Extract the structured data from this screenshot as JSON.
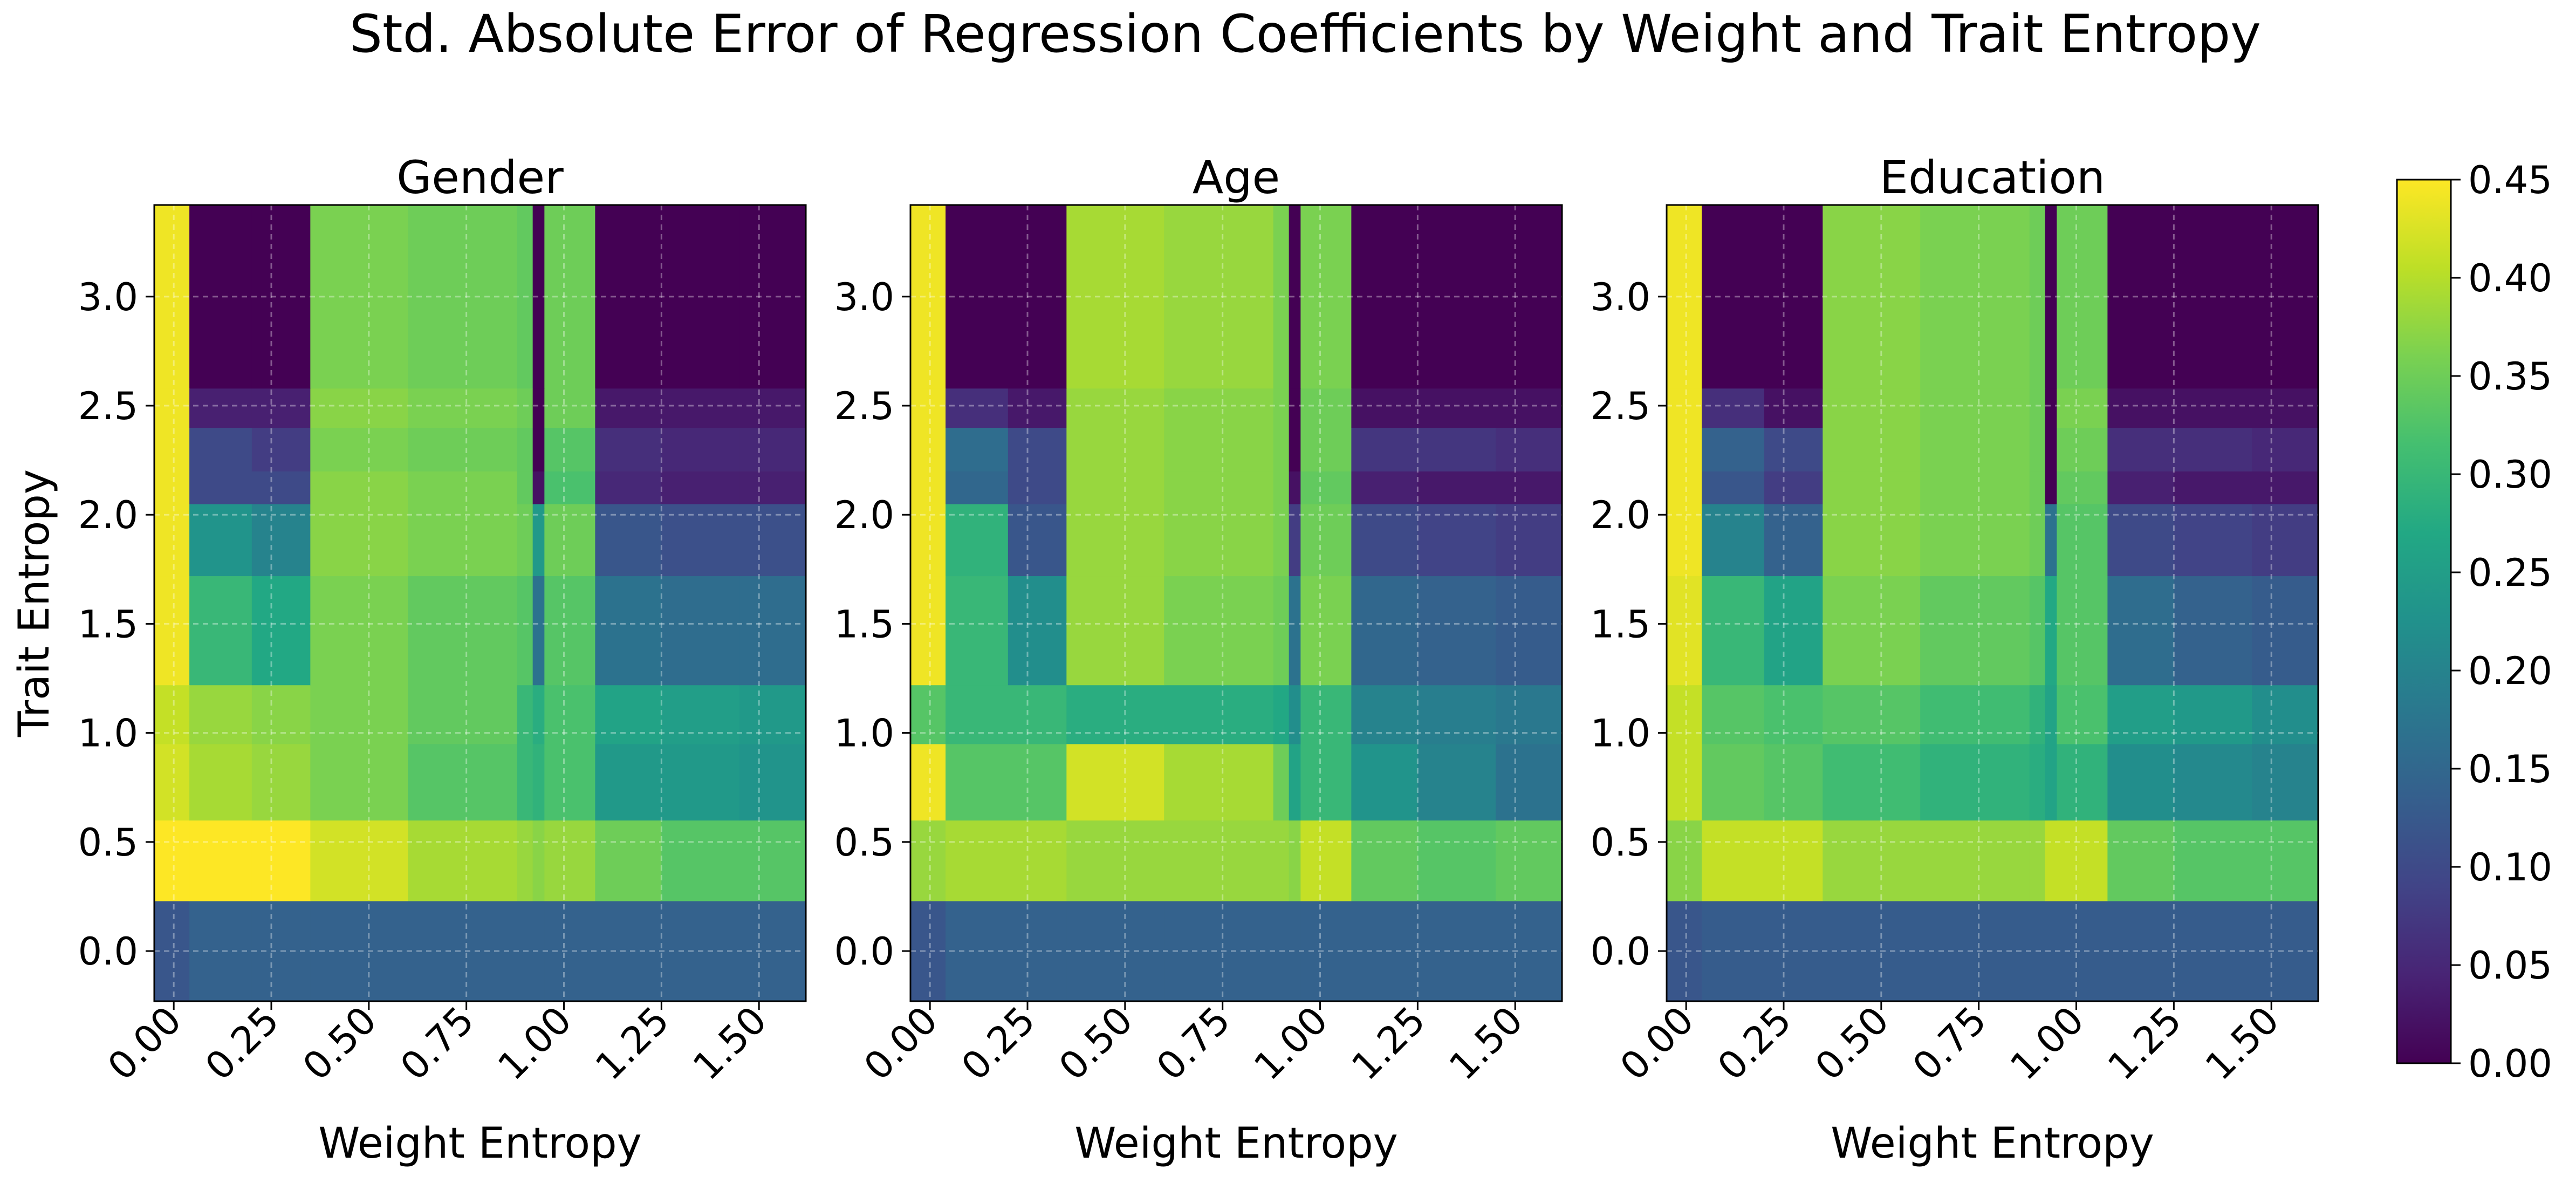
{
  "chart_data": {
    "type": "heatmap",
    "title": "Std. Absolute Error of Regression Coefficients by Weight and Trait Entropy",
    "colormap": "viridis",
    "colorbar": {
      "range": [
        0,
        0.45
      ],
      "ticks": [
        "0.00",
        "0.05",
        "0.10",
        "0.15",
        "0.20",
        "0.25",
        "0.30",
        "0.35",
        "0.40",
        "0.45"
      ]
    },
    "grid": true,
    "x_range": [
      -0.05,
      1.62
    ],
    "y_range": [
      -0.23,
      3.42
    ],
    "x_ticks": [
      "0.00",
      "0.25",
      "0.50",
      "0.75",
      "1.00",
      "1.25",
      "1.50"
    ],
    "y_ticks": [
      "0.0",
      "0.5",
      "1.0",
      "1.5",
      "2.0",
      "2.5",
      "3.0"
    ],
    "x_edges": [
      -0.05,
      0.04,
      0.2,
      0.35,
      0.6,
      0.88,
      0.92,
      0.95,
      1.08,
      1.25,
      1.45,
      1.62
    ],
    "y_edges": [
      -0.23,
      0.23,
      0.6,
      0.95,
      1.22,
      1.72,
      2.05,
      2.2,
      2.4,
      2.58,
      3.42
    ],
    "subplots": [
      {
        "title": "Gender",
        "xlabel": "Weight Entropy",
        "ylabel": "Trait Entropy",
        "z": [
          [
            0.12,
            0.14,
            0.14,
            0.14,
            0.14,
            0.14,
            0.14,
            0.14,
            0.14,
            0.14,
            0.14
          ],
          [
            0.45,
            0.45,
            0.45,
            0.42,
            0.39,
            0.38,
            0.37,
            0.38,
            0.35,
            0.33,
            0.33
          ],
          [
            0.42,
            0.39,
            0.38,
            0.36,
            0.33,
            0.3,
            0.29,
            0.32,
            0.24,
            0.24,
            0.23
          ],
          [
            0.41,
            0.38,
            0.37,
            0.36,
            0.34,
            0.3,
            0.28,
            0.32,
            0.26,
            0.25,
            0.24
          ],
          [
            0.44,
            0.3,
            0.27,
            0.36,
            0.34,
            0.33,
            0.17,
            0.33,
            0.17,
            0.16,
            0.16
          ],
          [
            0.44,
            0.23,
            0.2,
            0.37,
            0.36,
            0.35,
            0.24,
            0.35,
            0.12,
            0.11,
            0.11
          ],
          [
            0.44,
            0.1,
            0.1,
            0.37,
            0.36,
            0.34,
            0.02,
            0.32,
            0.05,
            0.04,
            0.04
          ],
          [
            0.44,
            0.1,
            0.08,
            0.36,
            0.35,
            0.34,
            0.0,
            0.33,
            0.06,
            0.05,
            0.05
          ],
          [
            0.44,
            0.04,
            0.04,
            0.37,
            0.36,
            0.35,
            0.0,
            0.35,
            0.03,
            0.03,
            0.03
          ],
          [
            0.44,
            0.0,
            0.0,
            0.36,
            0.35,
            0.34,
            0.0,
            0.35,
            0.0,
            0.0,
            0.0
          ]
        ]
      },
      {
        "title": "Age",
        "xlabel": "Weight Entropy",
        "ylabel": "",
        "z": [
          [
            0.12,
            0.14,
            0.14,
            0.14,
            0.14,
            0.14,
            0.14,
            0.14,
            0.14,
            0.14,
            0.14
          ],
          [
            0.38,
            0.39,
            0.39,
            0.38,
            0.38,
            0.38,
            0.37,
            0.41,
            0.34,
            0.33,
            0.34
          ],
          [
            0.44,
            0.33,
            0.33,
            0.42,
            0.39,
            0.35,
            0.26,
            0.3,
            0.23,
            0.2,
            0.17
          ],
          [
            0.33,
            0.3,
            0.3,
            0.28,
            0.28,
            0.27,
            0.22,
            0.3,
            0.2,
            0.19,
            0.18
          ],
          [
            0.44,
            0.3,
            0.22,
            0.38,
            0.36,
            0.35,
            0.17,
            0.36,
            0.15,
            0.14,
            0.13
          ],
          [
            0.44,
            0.29,
            0.12,
            0.38,
            0.37,
            0.36,
            0.08,
            0.35,
            0.1,
            0.09,
            0.08
          ],
          [
            0.44,
            0.15,
            0.1,
            0.38,
            0.37,
            0.36,
            0.02,
            0.34,
            0.04,
            0.03,
            0.03
          ],
          [
            0.44,
            0.16,
            0.1,
            0.38,
            0.37,
            0.36,
            0.0,
            0.35,
            0.07,
            0.07,
            0.06
          ],
          [
            0.44,
            0.06,
            0.03,
            0.38,
            0.37,
            0.36,
            0.0,
            0.35,
            0.02,
            0.02,
            0.02
          ],
          [
            0.44,
            0.0,
            0.0,
            0.39,
            0.38,
            0.36,
            0.0,
            0.36,
            0.0,
            0.0,
            0.0
          ]
        ]
      },
      {
        "title": "Education",
        "xlabel": "Weight Entropy",
        "ylabel": "",
        "z": [
          [
            0.12,
            0.13,
            0.13,
            0.13,
            0.13,
            0.13,
            0.13,
            0.13,
            0.13,
            0.13,
            0.13
          ],
          [
            0.37,
            0.41,
            0.41,
            0.38,
            0.38,
            0.38,
            0.41,
            0.41,
            0.34,
            0.33,
            0.33
          ],
          [
            0.41,
            0.34,
            0.33,
            0.31,
            0.29,
            0.28,
            0.26,
            0.29,
            0.22,
            0.21,
            0.2
          ],
          [
            0.41,
            0.33,
            0.32,
            0.33,
            0.31,
            0.29,
            0.26,
            0.32,
            0.25,
            0.24,
            0.22
          ],
          [
            0.43,
            0.3,
            0.26,
            0.36,
            0.34,
            0.33,
            0.27,
            0.33,
            0.16,
            0.14,
            0.13
          ],
          [
            0.44,
            0.2,
            0.14,
            0.37,
            0.36,
            0.35,
            0.17,
            0.33,
            0.1,
            0.09,
            0.08
          ],
          [
            0.44,
            0.12,
            0.08,
            0.37,
            0.36,
            0.35,
            0.0,
            0.34,
            0.04,
            0.03,
            0.03
          ],
          [
            0.44,
            0.14,
            0.1,
            0.37,
            0.36,
            0.35,
            0.0,
            0.35,
            0.06,
            0.06,
            0.05
          ],
          [
            0.44,
            0.06,
            0.02,
            0.37,
            0.36,
            0.35,
            0.0,
            0.36,
            0.02,
            0.02,
            0.02
          ],
          [
            0.44,
            0.0,
            0.0,
            0.37,
            0.36,
            0.35,
            0.0,
            0.35,
            0.0,
            0.0,
            0.0
          ]
        ]
      }
    ]
  }
}
